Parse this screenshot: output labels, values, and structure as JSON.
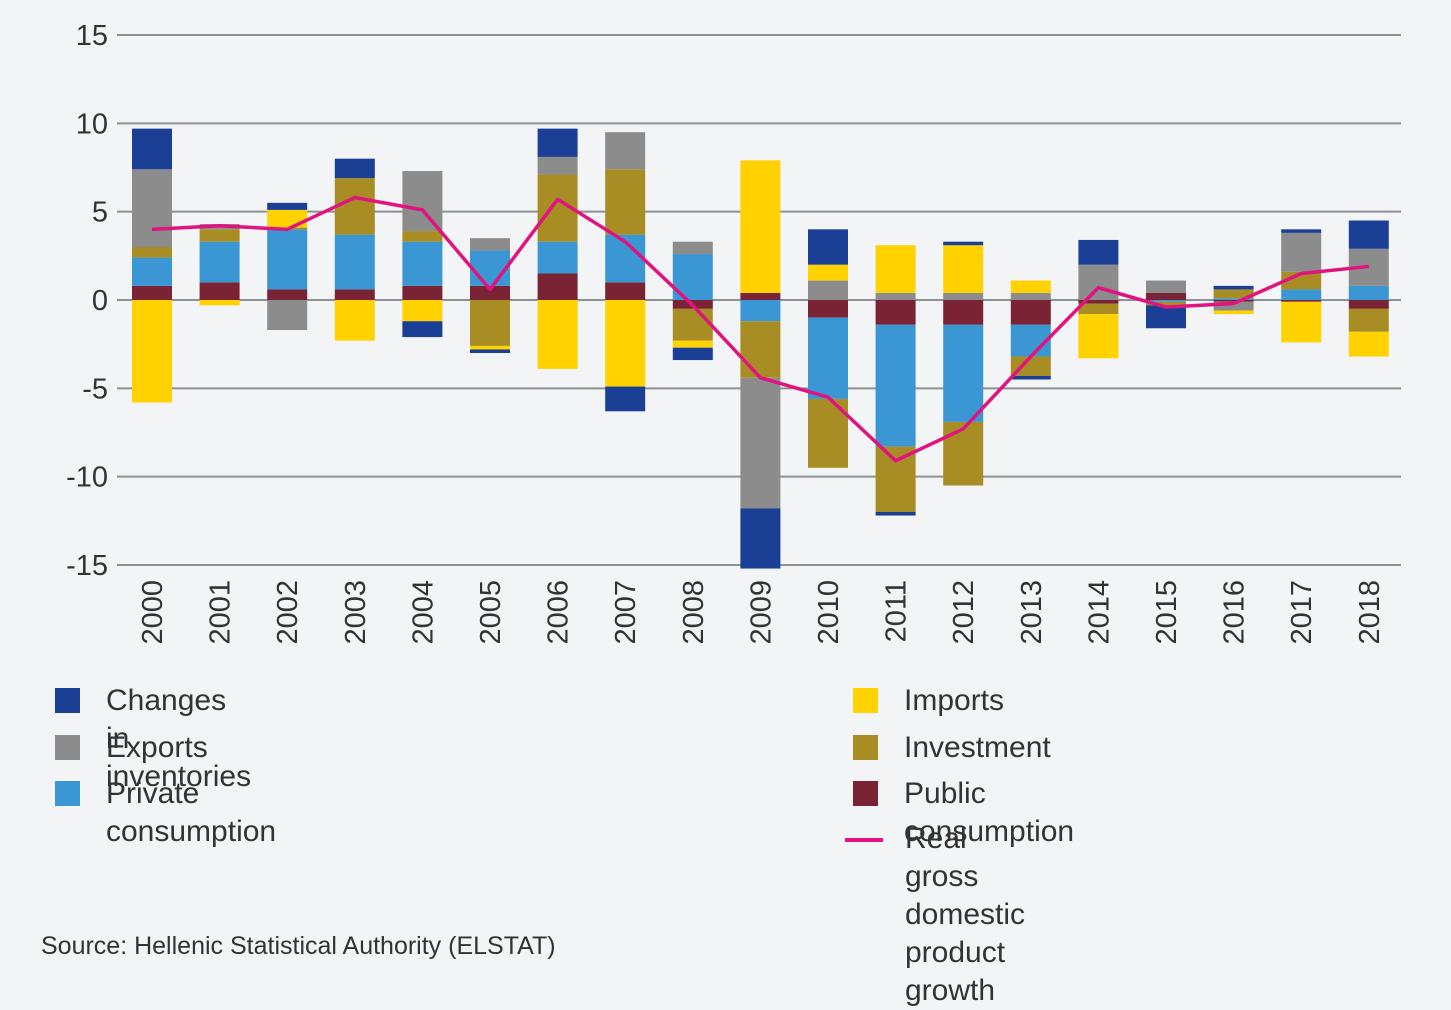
{
  "chart_data": {
    "type": "bar",
    "stacked": true,
    "title": "",
    "xlabel": "",
    "ylabel": "",
    "ylim": [
      -15,
      15
    ],
    "yticks": [
      15,
      10,
      5,
      0,
      -5,
      -10,
      -15
    ],
    "grid": true,
    "legend_position": "bottom",
    "categories": [
      "2000",
      "2001",
      "2002",
      "2003",
      "2004",
      "2005",
      "2006",
      "2007",
      "2008",
      "2009",
      "2010",
      "2011",
      "2012",
      "2013",
      "2014",
      "2015",
      "2016",
      "2017",
      "2018"
    ],
    "series": [
      {
        "name": "Public consumption",
        "color": "#7a2334",
        "values": [
          0.8,
          1.0,
          0.6,
          0.6,
          0.8,
          0.8,
          1.5,
          1.0,
          -0.5,
          0.4,
          -1.0,
          -1.4,
          -1.4,
          -1.4,
          -0.2,
          0.4,
          -0.1,
          -0.1,
          -0.5
        ]
      },
      {
        "name": "Private consumption",
        "color": "#3b97d3",
        "values": [
          1.6,
          2.3,
          3.4,
          3.1,
          2.5,
          2.0,
          1.8,
          2.7,
          2.6,
          -1.2,
          -4.6,
          -6.9,
          -5.5,
          -1.8,
          0.0,
          -0.1,
          0.1,
          0.6,
          0.8
        ]
      },
      {
        "name": "Investment",
        "color": "#a88d24",
        "values": [
          0.6,
          0.7,
          0.1,
          3.2,
          0.6,
          -2.6,
          3.8,
          3.7,
          -1.8,
          -3.2,
          -3.9,
          -3.7,
          -3.6,
          -1.1,
          -0.6,
          -0.2,
          0.5,
          1.0,
          -1.3
        ]
      },
      {
        "name": "Exports",
        "color": "#8c8c8c",
        "values": [
          4.4,
          0.3,
          -1.7,
          0.0,
          3.4,
          0.7,
          1.0,
          2.1,
          0.7,
          -7.4,
          1.1,
          0.4,
          0.4,
          0.4,
          2.0,
          0.7,
          -0.5,
          2.2,
          2.1
        ]
      },
      {
        "name": "Imports",
        "color": "#ffd200",
        "values": [
          -5.8,
          -0.3,
          1.0,
          -2.3,
          -1.2,
          -0.2,
          -3.9,
          -4.9,
          -0.4,
          7.5,
          0.9,
          2.7,
          2.7,
          0.7,
          -2.5,
          0.0,
          -0.2,
          -2.3,
          -1.4
        ]
      },
      {
        "name": "Changes in inventories",
        "color": "#1a3f95",
        "values": [
          2.3,
          0.0,
          0.4,
          1.1,
          -0.9,
          -0.2,
          1.6,
          -1.4,
          -0.7,
          -3.4,
          2.0,
          -0.2,
          0.2,
          -0.2,
          1.4,
          -1.3,
          0.2,
          0.2,
          1.6
        ]
      }
    ],
    "line": {
      "name": "Real gross domestic product growth",
      "color": "#e0137f",
      "values": [
        4.0,
        4.2,
        4.0,
        5.8,
        5.1,
        0.6,
        5.7,
        3.3,
        -0.3,
        -4.4,
        -5.5,
        -9.1,
        -7.3,
        -3.2,
        0.7,
        -0.4,
        -0.2,
        1.5,
        1.9
      ]
    }
  },
  "legend": {
    "left": [
      {
        "label": "Changes in inventories",
        "color": "#1a3f95"
      },
      {
        "label": "Exports",
        "color": "#8c8c8c"
      },
      {
        "label": "Private consumption",
        "color": "#3b97d3"
      }
    ],
    "right": [
      {
        "label": "Imports",
        "color": "#ffd200"
      },
      {
        "label": "Investment",
        "color": "#a88d24"
      },
      {
        "label": "Public consumption",
        "color": "#7a2334"
      }
    ],
    "line_label": "Real gross domestic product growth",
    "line_color": "#e0137f"
  },
  "source": "Source: Hellenic Statistical Authority (ELSTAT)"
}
